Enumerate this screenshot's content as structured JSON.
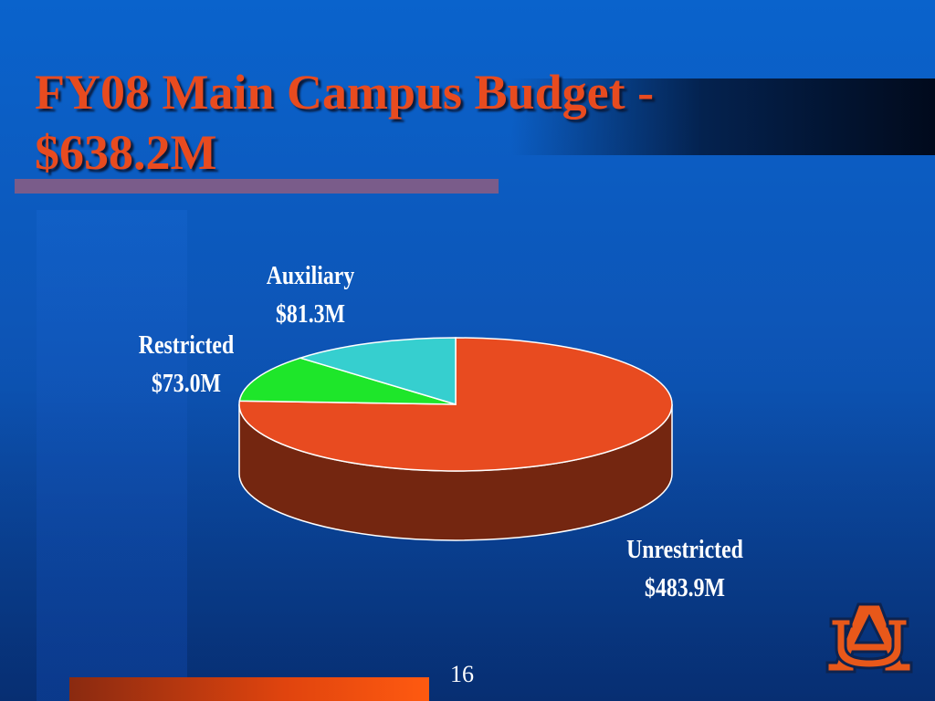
{
  "slide": {
    "title": "FY08 Main Campus Budget - $638.2M",
    "slide_number": "16"
  },
  "colors": {
    "title": "#e84b1f",
    "unrestricted": "#e84b20",
    "restricted": "#1ee62a",
    "auxiliary": "#36cfcf",
    "logo_orange": "#e8581a",
    "logo_navy": "#0d2350"
  },
  "logo": {
    "name": "auburn-au-logo",
    "text": "AU"
  },
  "chart_data": {
    "type": "pie",
    "title": "FY08 Main Campus Budget - $638.2M",
    "slices": [
      {
        "name": "Unrestricted",
        "value_label": "$483.9M",
        "value": 483.9,
        "color": "#e84b20"
      },
      {
        "name": "Restricted",
        "value_label": "$73.0M",
        "value": 73.0,
        "color": "#1ee62a"
      },
      {
        "name": "Auxiliary",
        "value_label": "$81.3M",
        "value": 81.3,
        "color": "#36cfcf"
      }
    ],
    "total": 638.2,
    "unit": "M",
    "style": "3d"
  }
}
